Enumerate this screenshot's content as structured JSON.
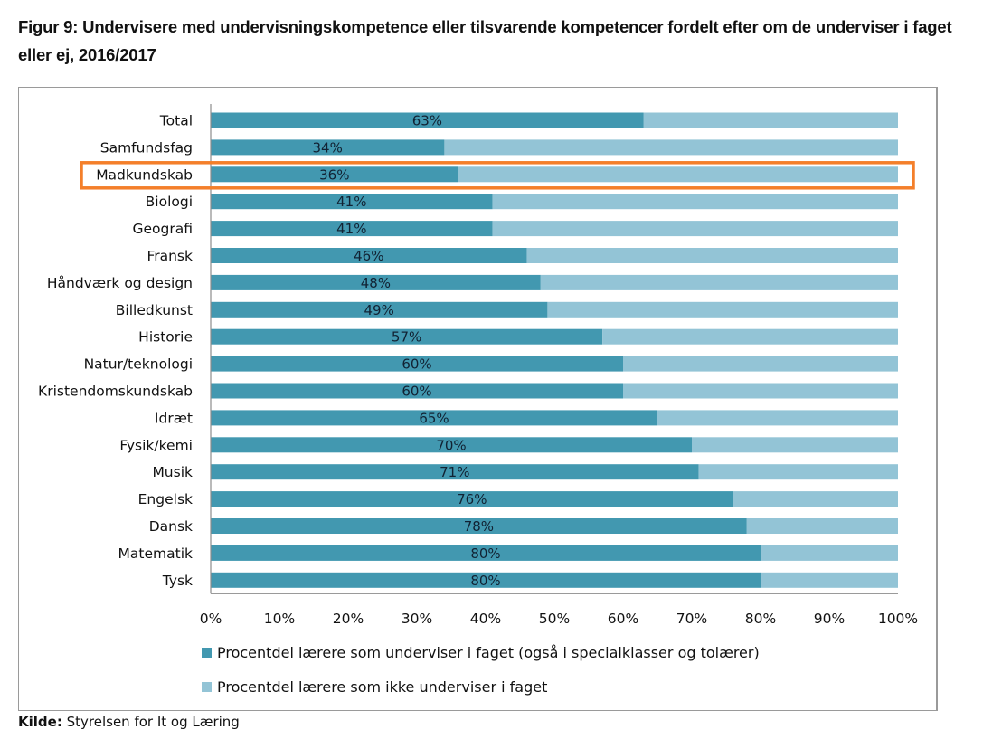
{
  "figure": {
    "title": "Figur 9: Undervisere med undervisningskompetence eller tilsvarende kompetencer fordelt efter om de underviser i faget eller ej, 2016/2017",
    "source_label": "Kilde:",
    "source_text": "Styrelsen for It og Læring"
  },
  "highlight": {
    "category": "Madkundskab",
    "color": "#f47f2a"
  },
  "chart_data": {
    "type": "bar",
    "orientation": "horizontal",
    "stacked": true,
    "percent_stacked": true,
    "title": "Figur 9: Undervisere med undervisningskompetence eller tilsvarende kompetencer fordelt efter om de underviser i faget eller ej, 2016/2017",
    "xlabel": "",
    "ylabel": "",
    "xlim": [
      0,
      100
    ],
    "grid": false,
    "legend_position": "bottom",
    "categories": [
      "Total",
      "Samfundsfag",
      "Madkundskab",
      "Biologi",
      "Geografi",
      "Fransk",
      "Håndværk og design",
      "Billedkunst",
      "Historie",
      "Natur/teknologi",
      "Kristendomskundskab",
      "Idræt",
      "Fysik/kemi",
      "Musik",
      "Engelsk",
      "Dansk",
      "Matematik",
      "Tysk"
    ],
    "x_ticks": [
      "0%",
      "10%",
      "20%",
      "30%",
      "40%",
      "50%",
      "60%",
      "70%",
      "80%",
      "90%",
      "100%"
    ],
    "series": [
      {
        "name": "Procentdel lærere som underviser i faget (også i specialklasser og tolærer)",
        "color": "#4298b0",
        "values": [
          63,
          34,
          36,
          41,
          41,
          46,
          48,
          49,
          57,
          60,
          60,
          65,
          70,
          71,
          76,
          78,
          80,
          80
        ],
        "labels": [
          "63%",
          "34%",
          "36%",
          "41%",
          "41%",
          "46%",
          "48%",
          "49%",
          "57%",
          "60%",
          "60%",
          "65%",
          "70%",
          "71%",
          "76%",
          "78%",
          "80%",
          "80%"
        ]
      },
      {
        "name": "Procentdel lærere som ikke underviser i faget",
        "color": "#93c4d6",
        "values": [
          37,
          66,
          64,
          59,
          59,
          54,
          52,
          51,
          43,
          40,
          40,
          35,
          30,
          29,
          24,
          22,
          20,
          20
        ]
      }
    ]
  }
}
